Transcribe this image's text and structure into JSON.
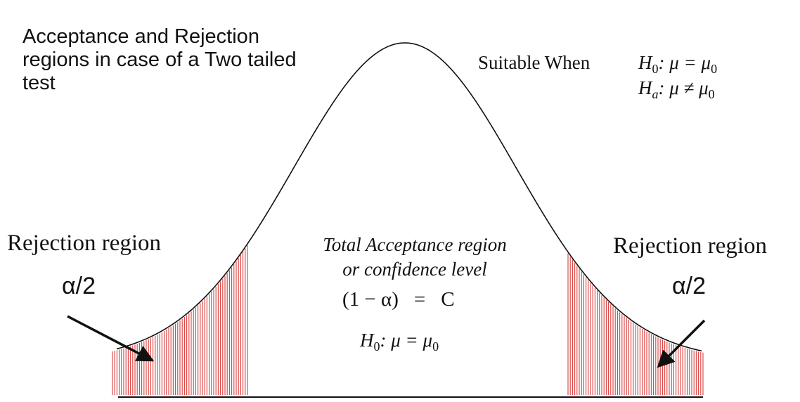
{
  "title": "Acceptance and Rejection regions in case of a Two tailed test",
  "suitable_when": {
    "label": "Suitable When",
    "h0": {
      "symbol": "H",
      "subscript": "0",
      "relation": ": μ = μ",
      "rhs_subscript": "0"
    },
    "ha": {
      "symbol": "H",
      "subscript": "a",
      "relation": ": μ ≠ μ",
      "rhs_subscript": "0"
    }
  },
  "left_region": {
    "label": "Rejection region",
    "alpha": "α/2"
  },
  "right_region": {
    "label": "Rejection region",
    "alpha": "α/2"
  },
  "center": {
    "line1": "Total Acceptance region",
    "line2": "or confidence level",
    "formula_lhs": "(1 − α)",
    "formula_eq": "=",
    "formula_rhs": "C",
    "h0": {
      "symbol": "H",
      "subscript": "0",
      "relation": ": μ = μ",
      "rhs_subscript": "0"
    }
  },
  "colors": {
    "curve": "#000000",
    "hatch": "#d9413f",
    "text": "#111111"
  }
}
